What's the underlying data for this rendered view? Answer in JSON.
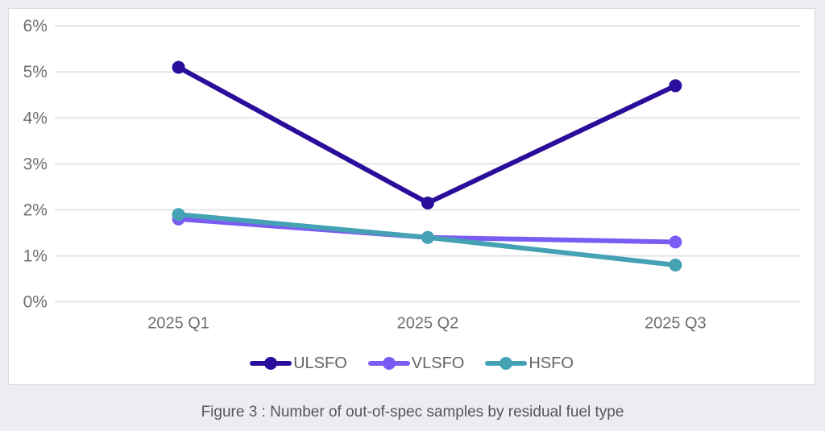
{
  "page": {
    "background_color": "#ECEDF2",
    "card_background": "#FFFFFF",
    "card_border_color": "#D9DAE0"
  },
  "caption": "Figure 3 : Number of out-of-spec samples by residual fuel type",
  "chart_data": {
    "type": "line",
    "title": "",
    "xlabel": "",
    "ylabel": "",
    "categories": [
      "2025 Q1",
      "2025 Q2",
      "2025 Q3"
    ],
    "series": [
      {
        "name": "ULSFO",
        "color": "#2A0D9B",
        "values": [
          5.1,
          2.15,
          4.7
        ]
      },
      {
        "name": "VLSFO",
        "color": "#7B5CF2",
        "values": [
          1.8,
          1.4,
          1.3
        ]
      },
      {
        "name": "HSFO",
        "color": "#44A2B4",
        "values": [
          1.9,
          1.4,
          0.8
        ]
      }
    ],
    "ylim": [
      0,
      6
    ],
    "ytick_step": 1,
    "ytick_labels": [
      "0%",
      "1%",
      "2%",
      "3%",
      "4%",
      "5%",
      "6%"
    ],
    "grid": true,
    "gridline_color": "#E4E5E7",
    "axis_label_color": "#6F6F6F",
    "legend_position": "bottom",
    "legend_text_color": "#646464"
  }
}
